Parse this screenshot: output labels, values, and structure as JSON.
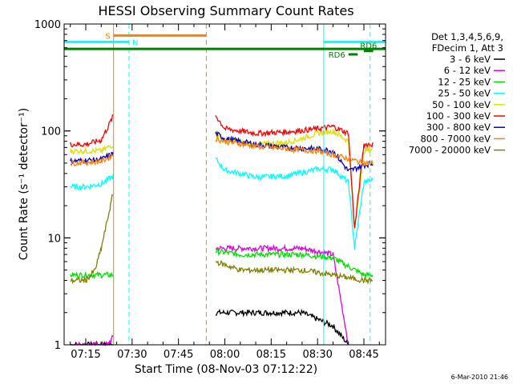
{
  "chart_data": {
    "type": "line",
    "title": "HESSI Observing Summary Count Rates",
    "xlabel": "Start Time (08-Nov-03 07:12:22)",
    "ylabel": "Count Rate (s⁻¹ detector⁻¹)",
    "yscale": "log",
    "ylim": [
      1,
      1000
    ],
    "xlim_minutes": [
      "07:08",
      "08:52"
    ],
    "x_ticks": [
      "07:15",
      "07:30",
      "07:45",
      "08:00",
      "08:15",
      "08:30",
      "08:45"
    ],
    "y_ticks": [
      "1",
      "10",
      "100",
      "1000"
    ],
    "legend": {
      "header1": "Det 1,3,4,5,6,9,",
      "header2": "FDecim 1, Att 3",
      "placement": "right"
    },
    "series": [
      {
        "name": "3 - 6 keV",
        "color": "#000000",
        "x": [
          "07:10",
          "07:20",
          "07:24",
          "07:57",
          "08:05",
          "08:15",
          "08:25",
          "08:35",
          "08:40"
        ],
        "y": [
          1,
          1,
          1,
          2,
          2,
          2,
          2,
          1.5,
          1
        ]
      },
      {
        "name": "6 - 12 keV",
        "color": "#e000e0",
        "x": [
          "07:10",
          "07:22",
          "07:24",
          "07:57",
          "08:05",
          "08:15",
          "08:25",
          "08:35",
          "08:40"
        ],
        "y": [
          1,
          1,
          1.2,
          8,
          8,
          8,
          8,
          7,
          1
        ]
      },
      {
        "name": "12 - 25 keV",
        "color": "#00e000",
        "x": [
          "07:10",
          "07:20",
          "07:24",
          "07:57",
          "08:05",
          "08:15",
          "08:25",
          "08:35",
          "08:45",
          "08:48"
        ],
        "y": [
          4.5,
          4.5,
          4.5,
          7.5,
          7,
          7,
          7,
          6.5,
          4.5,
          4.5
        ]
      },
      {
        "name": "25 - 50 keV",
        "color": "#00ffff",
        "x": [
          "07:10",
          "07:15",
          "07:20",
          "07:24",
          "07:57",
          "08:00",
          "08:10",
          "08:20",
          "08:30",
          "08:35",
          "08:40",
          "08:42",
          "08:45",
          "08:48"
        ],
        "y": [
          30,
          30,
          32,
          38,
          55,
          43,
          37,
          38,
          44,
          44,
          33,
          8,
          33,
          35
        ]
      },
      {
        "name": "50 - 100 keV",
        "color": "#e0e000",
        "x": [
          "07:10",
          "07:20",
          "07:24",
          "07:57",
          "08:00",
          "08:10",
          "08:20",
          "08:25",
          "08:30",
          "08:35",
          "08:40",
          "08:42",
          "08:45",
          "08:48"
        ],
        "y": [
          65,
          65,
          75,
          95,
          80,
          75,
          78,
          85,
          95,
          100,
          80,
          12,
          65,
          68
        ]
      },
      {
        "name": "100 - 300 keV",
        "color": "#ff0000",
        "x": [
          "07:10",
          "07:15",
          "07:20",
          "07:24",
          "07:57",
          "08:00",
          "08:10",
          "08:20",
          "08:30",
          "08:35",
          "08:40",
          "08:42",
          "08:45",
          "08:48"
        ],
        "y": [
          75,
          75,
          82,
          140,
          140,
          105,
          95,
          98,
          105,
          110,
          95,
          12,
          75,
          75
        ]
      },
      {
        "name": "300 - 800 keV",
        "color": "#0000c0",
        "x": [
          "07:10",
          "07:20",
          "07:24",
          "07:57",
          "08:00",
          "08:10",
          "08:20",
          "08:30",
          "08:35",
          "08:40",
          "08:45",
          "08:48"
        ],
        "y": [
          52,
          54,
          62,
          95,
          85,
          75,
          70,
          68,
          65,
          42,
          48,
          50
        ]
      },
      {
        "name": "800 - 7000 keV",
        "color": "#ff8000",
        "x": [
          "07:10",
          "07:20",
          "07:24",
          "07:57",
          "08:00",
          "08:10",
          "08:20",
          "08:30",
          "08:35",
          "08:40",
          "08:45",
          "08:48"
        ],
        "y": [
          50,
          52,
          60,
          85,
          80,
          72,
          68,
          65,
          60,
          55,
          50,
          50
        ]
      },
      {
        "name": "7000 - 20000 keV",
        "color": "#808000",
        "x": [
          "07:10",
          "07:15",
          "07:18",
          "07:20",
          "07:23",
          "07:24",
          "07:57",
          "08:05",
          "08:15",
          "08:25",
          "08:35",
          "08:45",
          "08:48"
        ],
        "y": [
          4,
          4,
          5,
          8,
          20,
          28,
          6,
          5,
          5,
          5,
          4.5,
          4,
          4
        ]
      }
    ],
    "vlines": [
      {
        "x": "07:08",
        "color": "#00ffff",
        "style": "solid"
      },
      {
        "x": "07:24",
        "color": "#ff8000",
        "style": "solid"
      },
      {
        "x": "07:29",
        "color": "#00ffff",
        "style": "dashed"
      },
      {
        "x": "07:54",
        "color": "#ff8000",
        "style": "dashed"
      },
      {
        "x": "08:32",
        "color": "#00ffff",
        "style": "solid"
      },
      {
        "x": "08:47",
        "color": "#00ffff",
        "style": "dashed"
      }
    ],
    "bars": [
      {
        "label": "S",
        "color": "#ff8000",
        "x0": "07:24",
        "x1": "07:54",
        "y": 780,
        "label_side": "left"
      },
      {
        "label": "N",
        "color": "#00ffff",
        "x0": "07:08",
        "x1": "07:29",
        "y": 680,
        "label_side": "right"
      },
      {
        "label": "",
        "color": "#00ffff",
        "x0": "08:32",
        "x1": "08:52",
        "y": 680,
        "label_side": "none"
      },
      {
        "label": "",
        "color": "#008000",
        "x0": "07:08",
        "x1": "08:52",
        "y": 585,
        "label_side": "none"
      },
      {
        "label": "RD6",
        "color": "#008000",
        "x0": "08:40",
        "x1": "08:43",
        "y": 520,
        "label_side": "left"
      },
      {
        "label": "RD6",
        "color": "#008000",
        "x0": "08:45",
        "x1": "08:48",
        "y": 560,
        "label_side": "above"
      }
    ],
    "timestamp": "6-Mar-2010 21:46"
  }
}
